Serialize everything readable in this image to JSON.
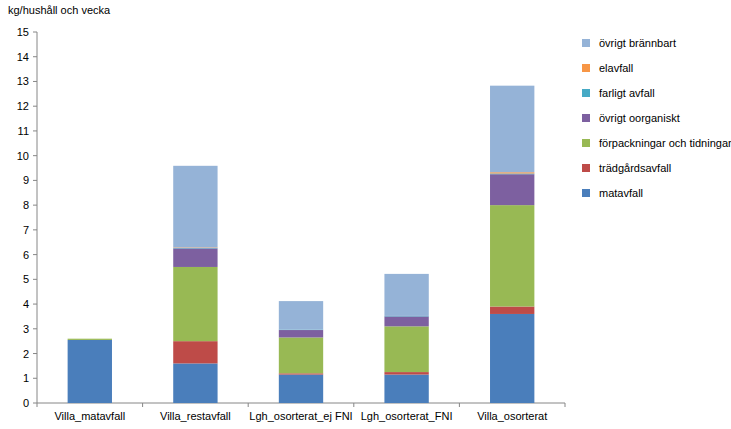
{
  "chart_data": {
    "type": "bar",
    "stacked": true,
    "y_label": "kg/hushåll och vecka",
    "categories": [
      "Villa_matavfall",
      "Villa_restavfall",
      "Lgh_osorterat_ej FNI",
      "Lgh_osorterat_FNI",
      "Villa_osorterat"
    ],
    "series": [
      {
        "name": "matavfall",
        "color": "#4a7ebb",
        "values": [
          2.55,
          1.6,
          1.15,
          1.15,
          3.6
        ]
      },
      {
        "name": "trädgårdsavfall",
        "color": "#be4b48",
        "values": [
          0,
          0.9,
          0.05,
          0.1,
          0.3
        ]
      },
      {
        "name": "förpackningar och tidningar",
        "color": "#98b954",
        "values": [
          0.05,
          3.0,
          1.45,
          1.85,
          4.1
        ]
      },
      {
        "name": "övrigt oorganiskt",
        "color": "#7d60a0",
        "values": [
          0,
          0.75,
          0.3,
          0.4,
          1.25
        ]
      },
      {
        "name": "farligt avfall",
        "color": "#46aac5",
        "values": [
          0,
          0.02,
          0.02,
          0.02,
          0.03
        ]
      },
      {
        "name": "elavfall",
        "color": "#f79646",
        "values": [
          0,
          0.02,
          0,
          0,
          0.05
        ]
      },
      {
        "name": "övrigt brännbart",
        "color": "#95b3d7",
        "values": [
          0,
          3.3,
          1.15,
          1.7,
          3.5
        ]
      }
    ],
    "ylim": [
      0,
      15
    ],
    "yticks": [
      0,
      1,
      2,
      3,
      4,
      5,
      6,
      7,
      8,
      9,
      10,
      11,
      12,
      13,
      14,
      15
    ],
    "grid": false,
    "legend": "right"
  }
}
